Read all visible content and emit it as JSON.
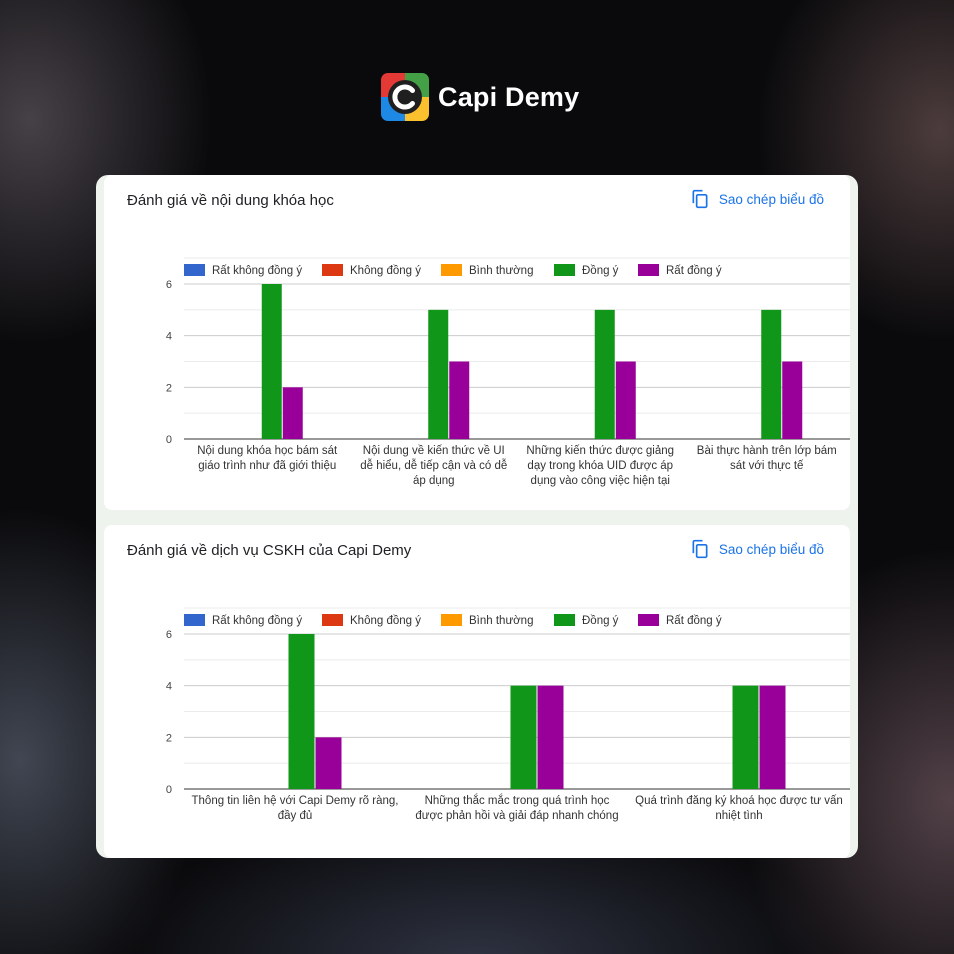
{
  "brand": {
    "name": "Capi Demy",
    "logo_colors": [
      "#e53935",
      "#43a047",
      "#1e88e5",
      "#fbc02d"
    ]
  },
  "copy_label": "Sao chép biểu đồ",
  "colors": {
    "series": [
      "#3366cc",
      "#dc3912",
      "#ff9900",
      "#109618",
      "#990099"
    ],
    "link": "#1a73e8"
  },
  "icons": {
    "copy": "copy-icon"
  },
  "chart_data": [
    {
      "type": "bar",
      "title": "Đánh giá về nội dung khóa học",
      "ylim": [
        0,
        6
      ],
      "yticks": [
        0,
        2,
        4,
        6
      ],
      "grid": true,
      "legend_position": "top",
      "categories": [
        [
          "Nội dung khóa học bám sát",
          "giáo trình như đã giới thiệu"
        ],
        [
          "Nội dung về kiến thức về UI",
          "dễ hiểu, dễ tiếp cận và có dễ",
          "áp dụng"
        ],
        [
          "Những kiến thức được giảng",
          "dạy trong khóa UID được áp",
          "dụng vào công việc hiện tại"
        ],
        [
          "Bài thực hành trên lớp bám",
          "sát với thực tế"
        ]
      ],
      "series": [
        {
          "name": "Rất không đồng ý",
          "values": [
            0,
            0,
            0,
            0
          ]
        },
        {
          "name": "Không đồng ý",
          "values": [
            0,
            0,
            0,
            0
          ]
        },
        {
          "name": "Bình thường",
          "values": [
            0,
            0,
            0,
            0
          ]
        },
        {
          "name": "Đồng ý",
          "values": [
            6,
            5,
            5,
            5
          ]
        },
        {
          "name": "Rất đồng ý",
          "values": [
            2,
            3,
            3,
            3
          ]
        }
      ]
    },
    {
      "type": "bar",
      "title": "Đánh giá về dịch vụ CSKH của Capi Demy",
      "ylim": [
        0,
        6
      ],
      "yticks": [
        0,
        2,
        4,
        6
      ],
      "grid": true,
      "legend_position": "top",
      "categories": [
        [
          "Thông tin liên hệ với Capi Demy rõ ràng,",
          "đầy đủ"
        ],
        [
          "Những thắc mắc trong quá trình học",
          "được phản hồi và giải đáp nhanh chóng"
        ],
        [
          "Quá trình đăng ký khoá học được tư vấn",
          "nhiệt tình"
        ]
      ],
      "series": [
        {
          "name": "Rất không đồng ý",
          "values": [
            0,
            0,
            0
          ]
        },
        {
          "name": "Không đồng ý",
          "values": [
            0,
            0,
            0
          ]
        },
        {
          "name": "Bình thường",
          "values": [
            0,
            0,
            0
          ]
        },
        {
          "name": "Đồng ý",
          "values": [
            6,
            4,
            4
          ]
        },
        {
          "name": "Rất đồng ý",
          "values": [
            2,
            4,
            4
          ]
        }
      ]
    }
  ]
}
